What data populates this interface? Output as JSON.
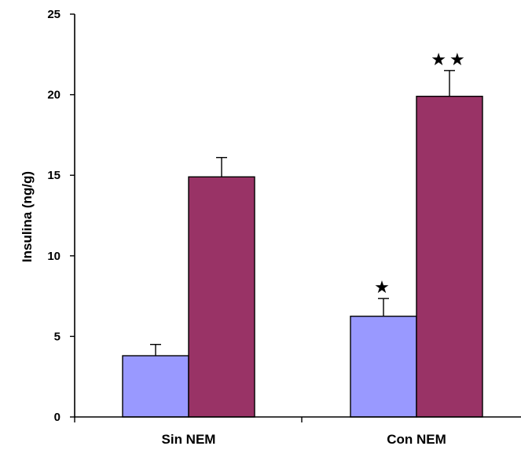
{
  "chart_data": {
    "type": "bar",
    "categories": [
      "Sin NEM",
      "Con NEM"
    ],
    "series": [
      {
        "values": [
          3.8,
          6.25
        ],
        "errors": [
          0.7,
          1.1
        ],
        "color": "#9999ff"
      },
      {
        "values": [
          14.9,
          19.9
        ],
        "errors": [
          1.2,
          1.6
        ],
        "color": "#993366"
      }
    ],
    "significance": [
      [
        "",
        "★"
      ],
      [
        "",
        "★★"
      ]
    ],
    "title": "",
    "xlabel": "",
    "ylabel": "Insulina (ng/g)",
    "ylim": [
      0,
      25
    ],
    "yticks": [
      0,
      5,
      10,
      15,
      20,
      25
    ],
    "grid": false,
    "legend": false
  }
}
